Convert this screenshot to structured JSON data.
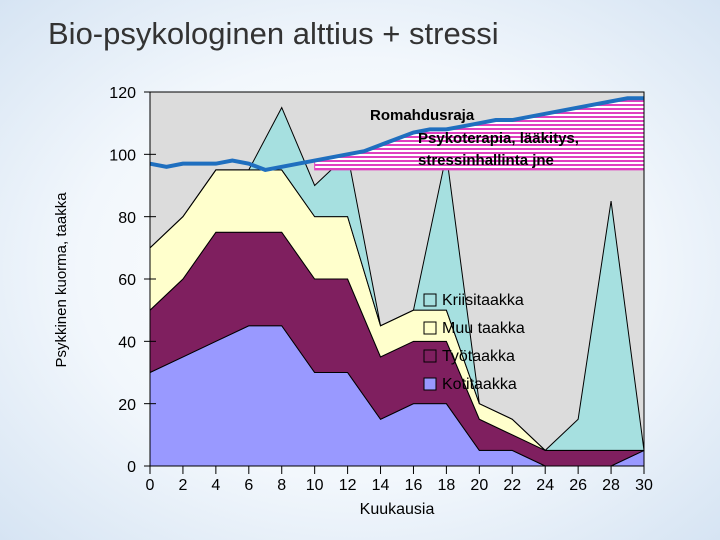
{
  "chart_data": {
    "type": "stacked-area",
    "title": "Bio-psykologinen alttius + stressi",
    "x_label": "Kuukausia",
    "y_label": "Psykkinen kuorma, taakka",
    "x": [
      0,
      2,
      4,
      6,
      8,
      10,
      12,
      14,
      16,
      18,
      20,
      22,
      24,
      26,
      28,
      30
    ],
    "series": [
      {
        "name": "Kotitaakka",
        "color": "#9999ff",
        "values": [
          30,
          35,
          40,
          45,
          45,
          30,
          30,
          15,
          20,
          20,
          5,
          5,
          0,
          0,
          0,
          5
        ]
      },
      {
        "name": "Työtaakka",
        "color": "#7f1f5f",
        "values": [
          20,
          25,
          35,
          30,
          30,
          30,
          30,
          20,
          20,
          20,
          10,
          5,
          5,
          5,
          5,
          0
        ]
      },
      {
        "name": "Muu taakka",
        "color": "#ffffcc",
        "values": [
          20,
          20,
          20,
          20,
          20,
          20,
          20,
          10,
          10,
          10,
          5,
          5,
          0,
          0,
          0,
          0
        ]
      },
      {
        "name": "Kriisitaakka",
        "color": "#a6e0e0",
        "values": [
          0,
          0,
          0,
          0,
          20,
          10,
          20,
          0,
          0,
          50,
          0,
          0,
          0,
          10,
          80,
          0
        ]
      }
    ],
    "threshold": {
      "color": "#1f6fbf",
      "x": [
        0,
        1,
        2,
        3,
        4,
        5,
        6,
        7,
        8,
        9,
        10,
        11,
        12,
        13,
        14,
        15,
        16,
        17,
        18,
        19,
        20,
        21,
        22,
        23,
        24,
        25,
        26,
        27,
        28,
        29,
        30
      ],
      "values": [
        97,
        96,
        97,
        97,
        97,
        98,
        97,
        95,
        96,
        97,
        98,
        99,
        100,
        101,
        103,
        105,
        107,
        108,
        108,
        109,
        110,
        111,
        111,
        112,
        113,
        114,
        115,
        116,
        117,
        118,
        118
      ]
    },
    "band": {
      "color": "#e040c0",
      "xlim": [
        10,
        30
      ],
      "bottom": 95
    },
    "annotations": [
      "Romahdusraja",
      "Psykoterapia, lääkitys,",
      "stressinhallinta jne"
    ],
    "xlim": [
      0,
      30
    ],
    "ylim": [
      0,
      120
    ],
    "xticks": [
      0,
      2,
      4,
      6,
      8,
      10,
      12,
      14,
      16,
      18,
      20,
      22,
      24,
      26,
      28,
      30
    ],
    "yticks": [
      0,
      20,
      40,
      60,
      80,
      100,
      120
    ],
    "plot_background": "#dcdcdc"
  }
}
